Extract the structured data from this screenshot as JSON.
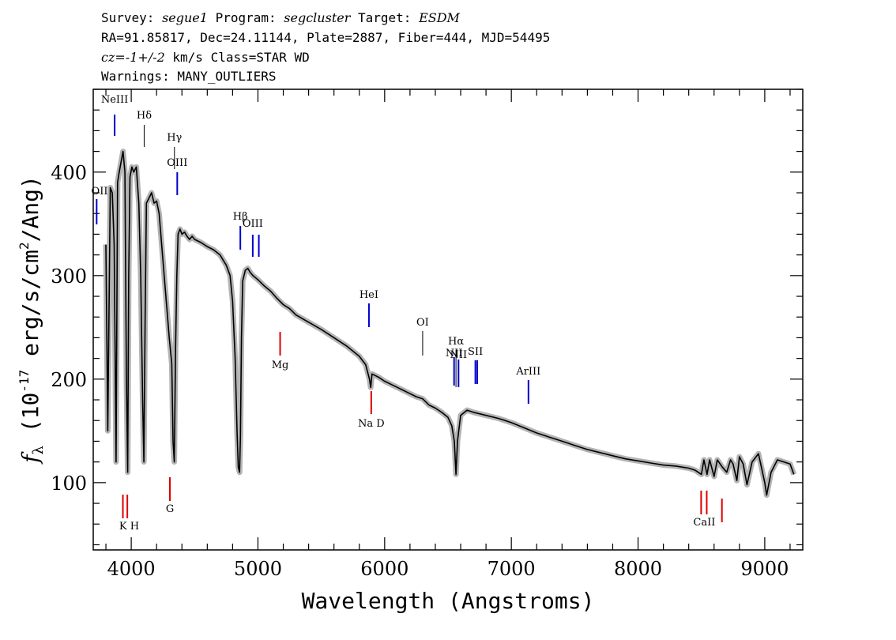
{
  "header": {
    "survey_label": "Survey:",
    "survey": "segue1",
    "program_label": "Program:",
    "program": "segcluster",
    "target_label": "Target:",
    "target": "ESDM",
    "line2": "RA=91.85817, Dec=24.11144, Plate=2887, Fiber=444, MJD=54495",
    "cz_label": "cz=",
    "cz_value": "-1+/-2",
    "cz_units": " km/s Class=STAR WD",
    "warnings": "Warnings: MANY_OUTLIERS"
  },
  "chart_data": {
    "type": "line",
    "xlabel": "Wavelength (Angstroms)",
    "ylabel": "f_λ (10^-17 erg/s/cm^2/Ang)",
    "xlim": [
      3700,
      9300
    ],
    "ylim": [
      35,
      480
    ],
    "xticks": [
      4000,
      5000,
      6000,
      7000,
      8000,
      9000
    ],
    "yticks": [
      100,
      200,
      300,
      400
    ],
    "grid": false,
    "colors": {
      "flux": "#000000",
      "error_band": "#b4b4b4",
      "emission": "#0000cc",
      "absorption": "#dd0000"
    },
    "series": [
      {
        "x": [
          3800,
          3815,
          3835,
          3850,
          3865,
          3880,
          3892,
          3905,
          3920,
          3935,
          3950,
          3962,
          3972,
          3980,
          3990,
          4005,
          4020,
          4040,
          4060,
          4075,
          4090,
          4100,
          4110,
          4120,
          4140,
          4160,
          4180,
          4200,
          4220,
          4240,
          4260,
          4280,
          4300,
          4320,
          4330,
          4340,
          4350,
          4360,
          4370,
          4385,
          4400,
          4420,
          4440,
          4460,
          4480,
          4500,
          4550,
          4600,
          4650,
          4700,
          4750,
          4780,
          4800,
          4820,
          4835,
          4845,
          4855,
          4862,
          4870,
          4880,
          4900,
          4920,
          4940,
          4960,
          4980,
          5000,
          5050,
          5100,
          5150,
          5200,
          5250,
          5300,
          5400,
          5500,
          5600,
          5700,
          5800,
          5850,
          5880,
          5890,
          5900,
          5950,
          6000,
          6100,
          6200,
          6250,
          6300,
          6350,
          6400,
          6450,
          6500,
          6530,
          6550,
          6563,
          6575,
          6600,
          6650,
          6700,
          6800,
          6900,
          7000,
          7100,
          7200,
          7300,
          7400,
          7500,
          7600,
          7700,
          7800,
          7900,
          8000,
          8100,
          8200,
          8300,
          8400,
          8450,
          8500,
          8520,
          8545,
          8565,
          8600,
          8625,
          8665,
          8700,
          8730,
          8750,
          8780,
          8800,
          8830,
          8860,
          8900,
          8950,
          9000,
          9015,
          9050,
          9100,
          9150,
          9200,
          9230
        ],
        "y": [
          330,
          150,
          385,
          380,
          330,
          120,
          390,
          400,
          410,
          420,
          400,
          200,
          110,
          300,
          395,
          405,
          400,
          405,
          370,
          300,
          180,
          120,
          260,
          370,
          375,
          380,
          370,
          372,
          360,
          330,
          300,
          270,
          240,
          215,
          140,
          120,
          230,
          300,
          340,
          345,
          340,
          342,
          338,
          335,
          338,
          335,
          332,
          328,
          325,
          320,
          310,
          300,
          275,
          220,
          150,
          115,
          110,
          145,
          240,
          295,
          305,
          307,
          303,
          300,
          298,
          296,
          290,
          285,
          278,
          272,
          268,
          262,
          255,
          248,
          240,
          232,
          222,
          214,
          200,
          192,
          205,
          202,
          198,
          192,
          186,
          183,
          181,
          175,
          172,
          168,
          163,
          155,
          140,
          108,
          140,
          165,
          170,
          168,
          165,
          162,
          158,
          153,
          148,
          144,
          140,
          136,
          132,
          129,
          126,
          123,
          121,
          119,
          117,
          116,
          114,
          112,
          108,
          122,
          108,
          122,
          106,
          122,
          115,
          110,
          122,
          118,
          102,
          125,
          118,
          98,
          120,
          128,
          100,
          88,
          110,
          122,
          120,
          118,
          108
        ]
      }
    ],
    "line_markers": [
      {
        "label": "NeIII",
        "x": 3869,
        "kind": "emission"
      },
      {
        "label": "Hδ",
        "x": 4102,
        "kind": "balmer"
      },
      {
        "label": "Hγ",
        "x": 4341,
        "kind": "balmer"
      },
      {
        "label": "OIII",
        "x": 4363,
        "kind": "emission"
      },
      {
        "label": "OII",
        "x": 3727,
        "kind": "emission"
      },
      {
        "label": "Hβ",
        "x": 4861,
        "kind": "emission"
      },
      {
        "label": "OIII",
        "x": 4959,
        "kind": "emission"
      },
      {
        "label": "",
        "x": 5007,
        "kind": "emission"
      },
      {
        "label": "HeI",
        "x": 5876,
        "kind": "emission"
      },
      {
        "label": "OI",
        "x": 6300,
        "kind": "balmer"
      },
      {
        "label": "NII",
        "x": 6548,
        "kind": "emission"
      },
      {
        "label": "Hα",
        "x": 6563,
        "kind": "balmer"
      },
      {
        "label": "NII",
        "x": 6583,
        "kind": "emission"
      },
      {
        "label": "SII",
        "x": 6716,
        "kind": "emission"
      },
      {
        "label": "",
        "x": 6731,
        "kind": "emission"
      },
      {
        "label": "ArIII",
        "x": 7135,
        "kind": "emission"
      },
      {
        "label": "K",
        "x": 3934,
        "kind": "absorption"
      },
      {
        "label": "H",
        "x": 3969,
        "kind": "absorption"
      },
      {
        "label": "G",
        "x": 4305,
        "kind": "absorption"
      },
      {
        "label": "Mg",
        "x": 5175,
        "kind": "absorption"
      },
      {
        "label": "Na D",
        "x": 5894,
        "kind": "absorption"
      },
      {
        "label": "CaII",
        "x": 8498,
        "kind": "absorption"
      },
      {
        "label": "",
        "x": 8542,
        "kind": "absorption"
      },
      {
        "label": "",
        "x": 8662,
        "kind": "absorption"
      }
    ]
  }
}
